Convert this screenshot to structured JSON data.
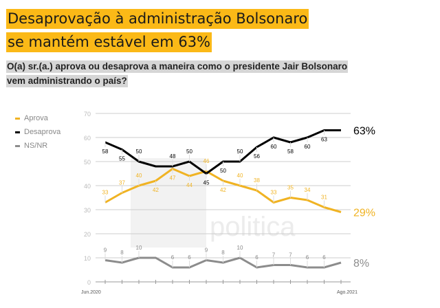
{
  "title_lines": [
    "Desaprovação à administração Bolsonaro",
    "se mantém estável em 63%"
  ],
  "subtitle_lines": [
    "O(a) sr.(a.) aprova ou desaprova a maneira como o presidente Jair Bolsonaro",
    "vem administrando o país?"
  ],
  "watermark": "XP politica",
  "chart_data": {
    "type": "line",
    "x_first_label": "Jun.2020",
    "x_last_label": "Ago.2021",
    "yticks": [
      0,
      10,
      20,
      30,
      40,
      50,
      60,
      70
    ],
    "ylim": [
      0,
      70
    ],
    "grid": true,
    "legend": "top-left",
    "series": [
      {
        "name": "Aprova",
        "color": "#f0b323",
        "values": [
          33,
          37,
          40,
          42,
          47,
          44,
          46,
          42,
          40,
          38,
          33,
          35,
          34,
          31,
          29
        ],
        "end_label": "29%"
      },
      {
        "name": "Desaprova",
        "color": "#000000",
        "values": [
          58,
          55,
          50,
          48,
          48,
          50,
          45,
          50,
          50,
          56,
          60,
          58,
          60,
          63,
          63
        ],
        "end_label": "63%"
      },
      {
        "name": "NS/NR",
        "color": "#8c8c8c",
        "values": [
          9,
          8,
          10,
          10,
          6,
          6,
          9,
          8,
          10,
          6,
          7,
          7,
          6,
          6,
          8
        ],
        "end_label": "8%"
      }
    ]
  }
}
